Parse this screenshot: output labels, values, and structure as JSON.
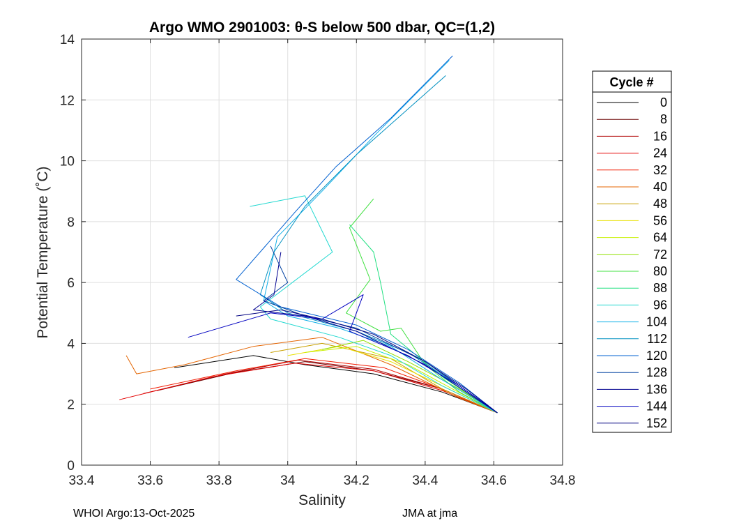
{
  "chart_data": {
    "type": "line",
    "title": "Argo WMO 2901003: θ-S below 500 dbar,  QC=(1,2)",
    "xlabel": "Salinity",
    "ylabel": "Potential Temperature (˚C)",
    "xlim": [
      33.4,
      34.8
    ],
    "ylim": [
      0,
      14
    ],
    "xticks": [
      "33.4",
      "33.6",
      "33.8",
      "34",
      "34.2",
      "34.4",
      "34.6",
      "34.8"
    ],
    "yticks": [
      "0",
      "2",
      "4",
      "6",
      "8",
      "10",
      "12",
      "14"
    ],
    "grid": true,
    "legend": {
      "title": "Cycle #",
      "placement": "right",
      "entries": [
        {
          "label": "0",
          "color": "#000000"
        },
        {
          "label": "8",
          "color": "#6a0000"
        },
        {
          "label": "16",
          "color": "#b00000"
        },
        {
          "label": "24",
          "color": "#e40000"
        },
        {
          "label": "32",
          "color": "#f21a00"
        },
        {
          "label": "40",
          "color": "#e46400"
        },
        {
          "label": "48",
          "color": "#c8a000"
        },
        {
          "label": "56",
          "color": "#e8e000"
        },
        {
          "label": "64",
          "color": "#c8f000"
        },
        {
          "label": "72",
          "color": "#90e000"
        },
        {
          "label": "80",
          "color": "#40e040"
        },
        {
          "label": "88",
          "color": "#20e080"
        },
        {
          "label": "96",
          "color": "#20d8d0"
        },
        {
          "label": "104",
          "color": "#10b0e8"
        },
        {
          "label": "112",
          "color": "#0090c0"
        },
        {
          "label": "120",
          "color": "#0060d0"
        },
        {
          "label": "128",
          "color": "#0040a0"
        },
        {
          "label": "136",
          "color": "#000090"
        },
        {
          "label": "144",
          "color": "#0000c0"
        },
        {
          "label": "152",
          "color": "#000080"
        }
      ]
    },
    "series": [
      {
        "name": "0",
        "color": "#000000",
        "x": [
          33.67,
          33.9,
          34.05,
          34.25,
          34.45,
          34.61
        ],
        "y": [
          3.2,
          3.6,
          3.3,
          3.0,
          2.4,
          1.72
        ]
      },
      {
        "name": "8",
        "color": "#6a0000",
        "x": [
          33.62,
          33.85,
          34.05,
          34.25,
          34.45,
          34.61
        ],
        "y": [
          2.45,
          3.05,
          3.4,
          3.1,
          2.5,
          1.72
        ]
      },
      {
        "name": "16",
        "color": "#b00000",
        "x": [
          33.58,
          33.82,
          34.03,
          34.25,
          34.45,
          34.61
        ],
        "y": [
          2.35,
          3.0,
          3.45,
          3.15,
          2.5,
          1.72
        ]
      },
      {
        "name": "24",
        "color": "#e40000",
        "x": [
          33.51,
          33.78,
          34.02,
          34.25,
          34.45,
          34.61
        ],
        "y": [
          2.15,
          2.9,
          3.35,
          3.1,
          2.45,
          1.72
        ]
      },
      {
        "name": "32",
        "color": "#f21a00",
        "x": [
          33.6,
          33.85,
          34.05,
          34.28,
          34.45,
          34.61
        ],
        "y": [
          2.5,
          3.1,
          3.5,
          3.2,
          2.5,
          1.72
        ]
      },
      {
        "name": "40",
        "color": "#e46400",
        "x": [
          33.53,
          33.56,
          33.7,
          33.9,
          34.1,
          34.3,
          34.5,
          34.61
        ],
        "y": [
          3.6,
          3.0,
          3.3,
          3.9,
          4.2,
          3.3,
          2.2,
          1.72
        ]
      },
      {
        "name": "48",
        "color": "#c8a000",
        "x": [
          33.95,
          34.1,
          34.3,
          34.45,
          34.61
        ],
        "y": [
          3.7,
          4.0,
          3.5,
          2.5,
          1.72
        ]
      },
      {
        "name": "56",
        "color": "#e8e000",
        "x": [
          34.0,
          34.15,
          34.3,
          34.45,
          34.61
        ],
        "y": [
          3.6,
          3.9,
          3.4,
          2.6,
          1.72
        ]
      },
      {
        "name": "64",
        "color": "#c8f000",
        "x": [
          34.05,
          34.2,
          34.35,
          34.48,
          34.61
        ],
        "y": [
          3.7,
          3.9,
          3.3,
          2.5,
          1.72
        ]
      },
      {
        "name": "72",
        "color": "#90e000",
        "x": [
          34.1,
          34.22,
          34.35,
          34.5,
          34.61
        ],
        "y": [
          3.8,
          4.1,
          3.4,
          2.5,
          1.72
        ]
      },
      {
        "name": "80",
        "color": "#40e040",
        "x": [
          34.25,
          34.18,
          34.24,
          34.17,
          34.27,
          34.33,
          34.4,
          34.5,
          34.61
        ],
        "y": [
          8.75,
          7.8,
          6.1,
          5.0,
          4.4,
          4.5,
          3.3,
          2.4,
          1.72
        ]
      },
      {
        "name": "88",
        "color": "#20e080",
        "x": [
          34.18,
          34.25,
          34.27,
          34.3,
          34.45,
          34.61
        ],
        "y": [
          7.9,
          7.0,
          6.0,
          4.3,
          2.9,
          1.72
        ]
      },
      {
        "name": "96",
        "color": "#20d8d0",
        "x": [
          33.89,
          34.05,
          34.13,
          33.92,
          33.95,
          34.15,
          34.3,
          34.45,
          34.61
        ],
        "y": [
          8.5,
          8.85,
          7.0,
          5.2,
          4.8,
          4.2,
          3.6,
          2.6,
          1.72
        ]
      },
      {
        "name": "104",
        "color": "#10b0e8",
        "x": [
          34.47,
          34.25,
          34.1,
          33.97,
          33.93,
          34.0,
          34.15,
          34.3,
          34.45,
          34.61
        ],
        "y": [
          13.3,
          10.8,
          9.0,
          7.5,
          5.4,
          4.9,
          4.5,
          3.9,
          2.8,
          1.72
        ]
      },
      {
        "name": "112",
        "color": "#0090c0",
        "x": [
          34.46,
          34.2,
          34.05,
          33.96,
          33.92,
          34.0,
          34.2,
          34.35,
          34.5,
          34.61
        ],
        "y": [
          12.8,
          10.2,
          8.5,
          7.0,
          5.6,
          5.0,
          4.4,
          3.7,
          2.6,
          1.72
        ]
      },
      {
        "name": "120",
        "color": "#0060d0",
        "x": [
          34.48,
          34.3,
          34.14,
          34.02,
          33.85,
          33.98,
          34.2,
          34.35,
          34.5,
          34.61
        ],
        "y": [
          13.45,
          11.4,
          9.8,
          8.3,
          6.1,
          5.2,
          4.6,
          3.8,
          2.7,
          1.72
        ]
      },
      {
        "name": "128",
        "color": "#0040a0",
        "x": [
          33.95,
          34.0,
          33.93,
          34.05,
          34.2,
          34.4,
          34.61
        ],
        "y": [
          7.2,
          6.0,
          5.4,
          4.9,
          4.5,
          3.4,
          1.72
        ]
      },
      {
        "name": "136",
        "color": "#000090",
        "x": [
          33.98,
          33.96,
          33.9,
          34.05,
          34.2,
          34.4,
          34.61
        ],
        "y": [
          7.0,
          5.6,
          5.1,
          4.9,
          4.4,
          3.3,
          1.72
        ]
      },
      {
        "name": "144",
        "color": "#0000c0",
        "x": [
          33.71,
          33.95,
          34.1,
          34.22,
          34.18,
          34.35,
          34.5,
          34.61
        ],
        "y": [
          4.2,
          5.0,
          4.8,
          5.6,
          4.4,
          3.6,
          2.6,
          1.72
        ]
      },
      {
        "name": "152",
        "color": "#000080",
        "x": [
          33.85,
          33.98,
          34.1,
          34.25,
          34.4,
          34.52,
          34.61
        ],
        "y": [
          4.9,
          5.1,
          4.8,
          4.3,
          3.4,
          2.5,
          1.72
        ]
      }
    ]
  },
  "footer": {
    "left": "WHOI Argo:13-Oct-2025",
    "right": "JMA at jma"
  }
}
